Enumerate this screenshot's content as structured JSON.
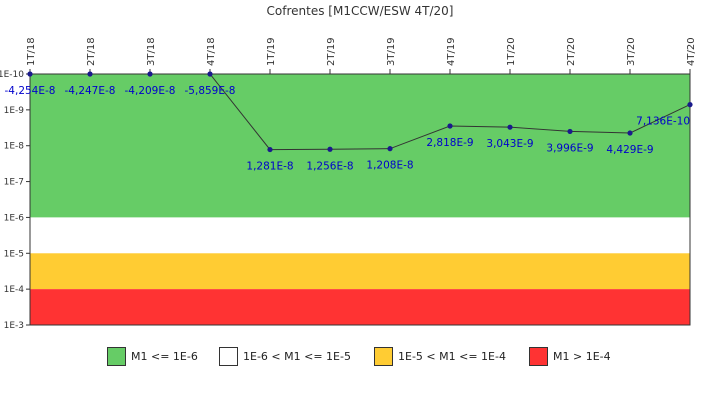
{
  "chart_data": {
    "type": "line",
    "title": "Cofrentes [M1CCW/ESW 4T/20]",
    "categories": [
      "1T/18",
      "2T/18",
      "3T/18",
      "4T/18",
      "1T/19",
      "2T/19",
      "3T/19",
      "4T/19",
      "1T/20",
      "2T/20",
      "3T/20",
      "4T/20"
    ],
    "series": [
      {
        "values": [
          -4.254e-08,
          -4.247e-08,
          -4.209e-08,
          -5.859e-08,
          1.281e-08,
          1.256e-08,
          1.208e-08,
          2.818e-09,
          3.043e-09,
          3.996e-09,
          4.429e-09,
          7.136e-10
        ],
        "labels": [
          "-4,254E-8",
          "-4,247E-8",
          "-4,209E-8",
          "-5,859E-8",
          "1,281E-8",
          "1,256E-8",
          "1,208E-8",
          "2,818E-9",
          "3,043E-9",
          "3,996E-9",
          "4,429E-9",
          "7,136E-10"
        ],
        "color": "#1a1a8c"
      }
    ],
    "y_axis": {
      "scale": "log",
      "direction": "inverted",
      "range": [
        1e-10,
        0.001
      ],
      "tick_labels": [
        "1E-10",
        "1E-9",
        "1E-8",
        "1E-7",
        "1E-6",
        "1E-5",
        "1E-4",
        "1E-3"
      ]
    },
    "bands": [
      {
        "from": 1e-10,
        "to": 1e-06,
        "color": "#66cc66",
        "label": "M1 <= 1E-6"
      },
      {
        "from": 1e-06,
        "to": 1e-05,
        "color": "#ffffff",
        "label": "1E-6 < M1 <= 1E-5"
      },
      {
        "from": 1e-05,
        "to": 0.0001,
        "color": "#ffcc33",
        "label": "1E-5 < M1 <= 1E-4"
      },
      {
        "from": 0.0001,
        "to": 0.001,
        "color": "#ff3333",
        "label": "M1 > 1E-4"
      }
    ],
    "legend_position": "bottom",
    "grid": false
  }
}
